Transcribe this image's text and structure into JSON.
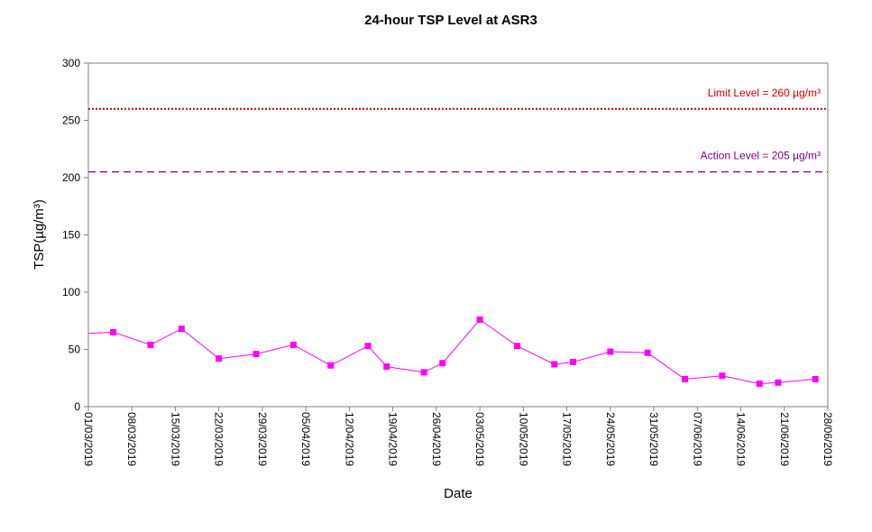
{
  "chart_data": {
    "type": "line",
    "title": "24-hour TSP Level at ASR3",
    "xlabel": "Date",
    "ylabel": "TSP(µg/m³)",
    "ylim": [
      0,
      300
    ],
    "yticks": [
      0,
      50,
      100,
      150,
      200,
      250,
      300
    ],
    "xlim": [
      "2019-03-01",
      "2019-06-28"
    ],
    "xtick_labels": [
      "01/03/2019",
      "08/03/2019",
      "15/03/2019",
      "22/03/2019",
      "29/03/2019",
      "05/04/2019",
      "12/04/2019",
      "19/04/2019",
      "26/04/2019",
      "03/05/2019",
      "10/05/2019",
      "17/05/2019",
      "24/05/2019",
      "31/05/2019",
      "07/06/2019",
      "14/06/2019",
      "21/06/2019",
      "28/06/2019"
    ],
    "grid": false,
    "series": [
      {
        "color": "#ff00ff",
        "marker": "square",
        "points": [
          [
            "2019-03-01",
            64
          ],
          [
            "2019-03-05",
            65
          ],
          [
            "2019-03-11",
            54
          ],
          [
            "2019-03-16",
            68
          ],
          [
            "2019-03-22",
            42
          ],
          [
            "2019-03-28",
            46
          ],
          [
            "2019-04-03",
            54
          ],
          [
            "2019-04-09",
            36
          ],
          [
            "2019-04-15",
            53
          ],
          [
            "2019-04-18",
            35
          ],
          [
            "2019-04-24",
            30
          ],
          [
            "2019-04-27",
            38
          ],
          [
            "2019-05-03",
            76
          ],
          [
            "2019-05-09",
            53
          ],
          [
            "2019-05-15",
            37
          ],
          [
            "2019-05-18",
            39
          ],
          [
            "2019-05-24",
            48
          ],
          [
            "2019-05-30",
            47
          ],
          [
            "2019-06-05",
            24
          ],
          [
            "2019-06-11",
            27
          ],
          [
            "2019-06-17",
            20
          ],
          [
            "2019-06-20",
            21
          ],
          [
            "2019-06-26",
            24
          ]
        ]
      }
    ],
    "reference_lines": [
      {
        "label": "Limit Level  = 260 µg/m³",
        "value": 260,
        "color": "#cc0000",
        "style": "dotted"
      },
      {
        "label": "Action Level  = 205 µg/m³",
        "value": 205,
        "color": "#800080",
        "style": "dashed"
      }
    ]
  }
}
